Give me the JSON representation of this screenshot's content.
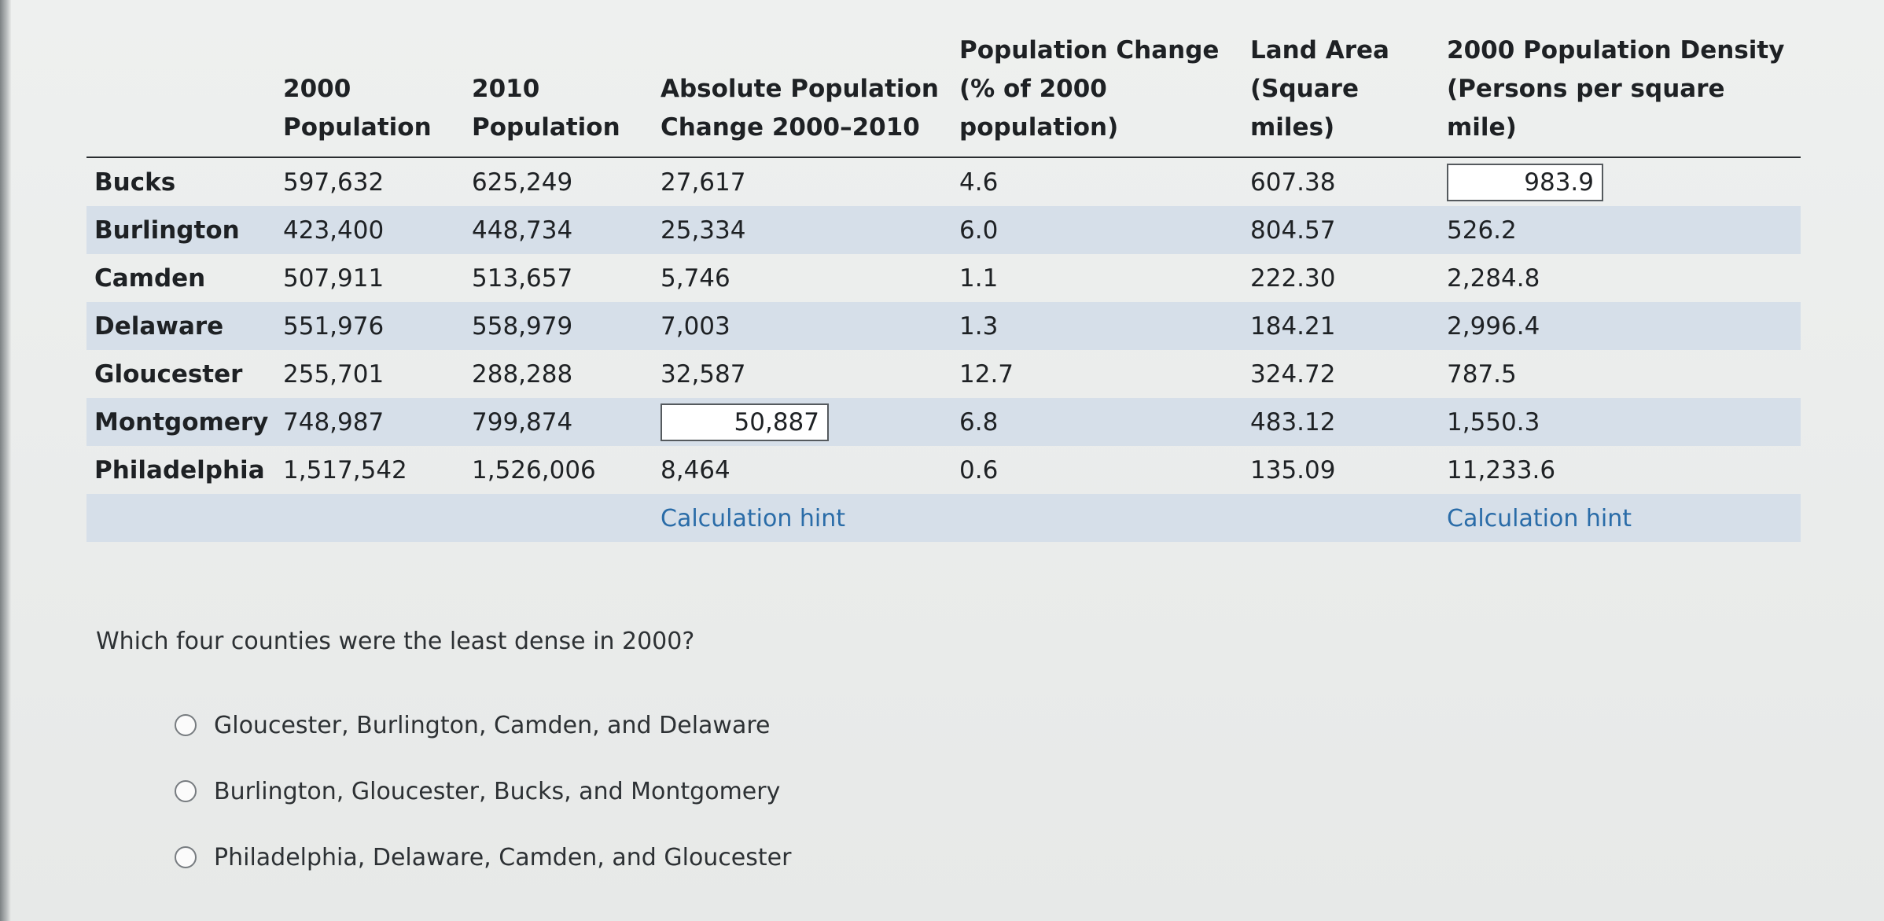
{
  "table": {
    "headers": [
      "",
      "2000 Population",
      "2010 Population",
      "Absolute Population Change 2000–2010",
      "Population Change (% of 2000 population)",
      "Land Area (Square miles)",
      "2000 Population Density (Persons per square mile)"
    ],
    "rows": [
      {
        "county": "Bucks",
        "pop2000": "597,632",
        "pop2010": "625,249",
        "abs_change": "27,617",
        "pct_change": "4.6",
        "land_area": "607.38",
        "density": "983.9"
      },
      {
        "county": "Burlington",
        "pop2000": "423,400",
        "pop2010": "448,734",
        "abs_change": "25,334",
        "pct_change": "6.0",
        "land_area": "804.57",
        "density": "526.2"
      },
      {
        "county": "Camden",
        "pop2000": "507,911",
        "pop2010": "513,657",
        "abs_change": "5,746",
        "pct_change": "1.1",
        "land_area": "222.30",
        "density": "2,284.8"
      },
      {
        "county": "Delaware",
        "pop2000": "551,976",
        "pop2010": "558,979",
        "abs_change": "7,003",
        "pct_change": "1.3",
        "land_area": "184.21",
        "density": "2,996.4"
      },
      {
        "county": "Gloucester",
        "pop2000": "255,701",
        "pop2010": "288,288",
        "abs_change": "32,587",
        "pct_change": "12.7",
        "land_area": "324.72",
        "density": "787.5"
      },
      {
        "county": "Montgomery",
        "pop2000": "748,987",
        "pop2010": "799,874",
        "abs_change": "50,887",
        "pct_change": "6.8",
        "land_area": "483.12",
        "density": "1,550.3"
      },
      {
        "county": "Philadelphia",
        "pop2000": "1,517,542",
        "pop2010": "1,526,006",
        "abs_change": "8,464",
        "pct_change": "0.6",
        "land_area": "135.09",
        "density": "11,233.6"
      }
    ],
    "hint_abs": "Calculation hint",
    "hint_density": "Calculation hint"
  },
  "question": {
    "text": "Which four counties were the least dense in 2000?",
    "options": [
      "Gloucester, Burlington, Camden, and Delaware",
      "Burlington, Gloucester, Bucks, and Montgomery",
      "Philadelphia, Delaware, Camden, and Gloucester"
    ]
  },
  "colors": {
    "shaded_row": "#d6dfe9",
    "hint_link": "#2a6ca8",
    "background": "#e9ebea"
  }
}
